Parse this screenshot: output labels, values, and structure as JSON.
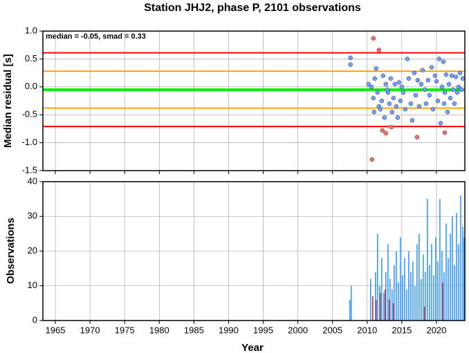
{
  "chart_data": [
    {
      "type": "scatter",
      "title": "Station JHJ2, phase P, 2101 observations",
      "ylabel": "Median residual [s]",
      "annotation": "median = -0.05, smad = 0.33",
      "xlim": [
        1963.2,
        2024.1
      ],
      "xticks": [
        1965,
        1970,
        1975,
        1980,
        1985,
        1990,
        1995,
        2000,
        2005,
        2010,
        2015,
        2020
      ],
      "ylim": [
        -1.5,
        1.0
      ],
      "yticks": [
        {
          "value": 1.0,
          "label": "1.0"
        },
        0.5,
        {
          "value": 0.0,
          "label": "0.0"
        },
        -0.5,
        {
          "value": -1.0,
          "label": "-1.0"
        },
        -1.5
      ],
      "grid": true,
      "hlines": [
        {
          "value": 0.61,
          "color": "#ff0000"
        },
        {
          "value": 0.28,
          "color": "#ffa500"
        },
        {
          "value": -0.05,
          "color": "#00ee00"
        },
        {
          "value": -0.38,
          "color": "#ffa500"
        },
        {
          "value": -0.71,
          "color": "#ff0000"
        }
      ],
      "series": [
        {
          "color": "#6f9fff",
          "x": [
            2007.6,
            2007.6,
            2010.2,
            2010.6,
            2010.9,
            2011.0,
            2011.1,
            2011.3,
            2011.5,
            2011.7,
            2011.9,
            2012.1,
            2012.3,
            2012.5,
            2012.7,
            2013.0,
            2013.2,
            2013.4,
            2013.6,
            2013.8,
            2014.0,
            2014.2,
            2014.4,
            2014.6,
            2014.8,
            2015.0,
            2015.2,
            2015.5,
            2015.8,
            2016.0,
            2016.3,
            2016.5,
            2016.8,
            2017.0,
            2017.3,
            2017.5,
            2017.8,
            2018.0,
            2018.3,
            2018.5,
            2018.8,
            2019.0,
            2019.3,
            2019.5,
            2019.8,
            2020.0,
            2020.2,
            2020.4,
            2020.6,
            2020.8,
            2021.0,
            2021.2,
            2021.4,
            2021.6,
            2021.8,
            2022.0,
            2022.2,
            2022.4,
            2022.6,
            2022.8,
            2023.0,
            2023.2,
            2023.4,
            2023.6,
            2023.8,
            2021.1,
            2012.9
          ],
          "values": [
            0.52,
            0.4,
            0.05,
            0.0,
            -0.2,
            -0.45,
            0.15,
            0.33,
            -0.1,
            -0.35,
            -0.4,
            -0.25,
            0.2,
            -0.55,
            0.05,
            -0.1,
            -0.3,
            0.15,
            -0.45,
            -0.2,
            0.05,
            -0.35,
            -0.55,
            0.08,
            -0.25,
            0.0,
            -0.1,
            -0.4,
            0.5,
            0.15,
            -0.3,
            -0.6,
            0.25,
            -0.15,
            0.12,
            -0.35,
            0.05,
            0.3,
            -0.05,
            -0.3,
            0.12,
            -0.15,
            0.35,
            -0.4,
            0.2,
            0.1,
            -0.25,
            0.5,
            -0.65,
            0.0,
            0.45,
            -0.1,
            0.22,
            -0.45,
            0.05,
            -0.2,
            0.2,
            -0.05,
            -0.3,
            0.18,
            -0.1,
            0.0,
            0.25,
            -0.05,
            0.15,
            -0.3,
            -0.05
          ]
        },
        {
          "color": "#ff6b5b",
          "x": [
            2010.7,
            2010.9,
            2011.7,
            2012.2,
            2012.7,
            2013.5,
            2017.2,
            2021.2
          ],
          "values": [
            -1.3,
            0.87,
            0.66,
            -0.78,
            -0.83,
            -0.72,
            -0.9,
            -0.82
          ]
        }
      ]
    },
    {
      "type": "bar",
      "xlabel": "Year",
      "ylabel": "Observations",
      "xlim": [
        1963.2,
        2024.1
      ],
      "xticks": [
        1965,
        1970,
        1975,
        1980,
        1985,
        1990,
        1995,
        2000,
        2005,
        2010,
        2015,
        2020
      ],
      "ylim": [
        0,
        40
      ],
      "yticks": [
        0,
        10,
        20,
        30,
        40
      ],
      "grid": true,
      "series": [
        {
          "color": "#3399ff",
          "x": [
            2007.5,
            2007.7,
            2010.5,
            2010.8,
            2011.2,
            2011.5,
            2011.8,
            2012.1,
            2012.4,
            2012.7,
            2013.0,
            2013.3,
            2013.6,
            2013.9,
            2014.2,
            2014.5,
            2014.8,
            2015.1,
            2015.4,
            2015.7,
            2016.0,
            2016.3,
            2016.6,
            2016.9,
            2017.2,
            2017.5,
            2017.8,
            2018.1,
            2018.4,
            2018.7,
            2019.0,
            2019.3,
            2019.6,
            2019.9,
            2020.2,
            2020.5,
            2020.8,
            2021.1,
            2021.4,
            2021.7,
            2022.0,
            2022.3,
            2022.6,
            2022.9,
            2023.2,
            2023.5,
            2023.8,
            2024.0
          ],
          "values": [
            6,
            10,
            12,
            7,
            14,
            25,
            10,
            18,
            8,
            14,
            22,
            12,
            9,
            16,
            20,
            11,
            24,
            13,
            18,
            9,
            20,
            14,
            17,
            10,
            22,
            25,
            12,
            19,
            14,
            35,
            16,
            22,
            13,
            24,
            17,
            35,
            20,
            14,
            28,
            18,
            25,
            30,
            16,
            31,
            22,
            36,
            27,
            24
          ]
        },
        {
          "color": "#b0304a",
          "x": [
            2010.8,
            2011.3,
            2011.9,
            2012.6,
            2013.2,
            2013.8,
            2020.9,
            2018.3
          ],
          "values": [
            7,
            6,
            8,
            9,
            6,
            5,
            11,
            4
          ]
        }
      ]
    }
  ]
}
